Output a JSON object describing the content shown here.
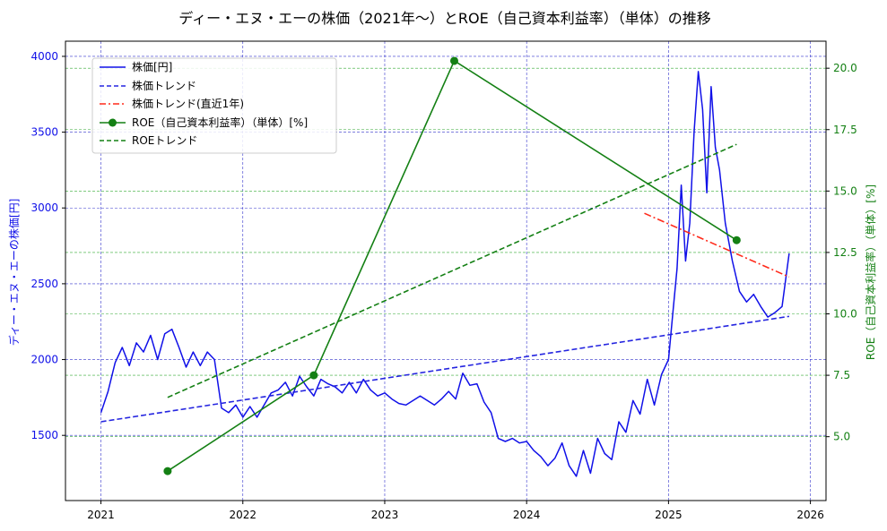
{
  "chart_data": {
    "type": "line",
    "title": "ディー・エヌ・エーの株価（2021年〜）とROE（自己資本利益率）（単体）の推移",
    "xlabel": "",
    "ylabel_left": "ディー・エヌ・エーの株価[円]",
    "ylabel_right": "ROE（自己資本利益率）（単体）[%]",
    "xlim": [
      2020.75,
      2026.11
    ],
    "ylim_left": [
      1070,
      4100
    ],
    "ylim_right": [
      2.4,
      21.1
    ],
    "x_ticks": [
      2021,
      2022,
      2023,
      2024,
      2025,
      2026
    ],
    "x_tick_labels": [
      "2021",
      "2022",
      "2023",
      "2024",
      "2025",
      "2026"
    ],
    "y_left_ticks": [
      1500,
      2000,
      2500,
      3000,
      3500,
      4000
    ],
    "y_left_tick_labels": [
      "1500",
      "2000",
      "2500",
      "3000",
      "3500",
      "4000"
    ],
    "y_right_ticks": [
      5.0,
      7.5,
      10.0,
      12.5,
      15.0,
      17.5,
      20.0
    ],
    "y_right_tick_labels": [
      "5.0",
      "7.5",
      "10.0",
      "12.5",
      "15.0",
      "17.5",
      "20.0"
    ],
    "colors": {
      "price": "#1010e8",
      "trend": "#2525e0",
      "recent": "#ff2a1a",
      "roe": "#148014",
      "grid_blue": "#3333cc",
      "grid_green": "#33aa33"
    },
    "series": [
      {
        "name": "株価[円]",
        "axis": "left",
        "style": "solid",
        "x": [
          2021.0,
          2021.05,
          2021.1,
          2021.15,
          2021.2,
          2021.25,
          2021.3,
          2021.35,
          2021.4,
          2021.45,
          2021.5,
          2021.55,
          2021.6,
          2021.65,
          2021.7,
          2021.75,
          2021.8,
          2021.85,
          2021.9,
          2021.95,
          2022.0,
          2022.05,
          2022.1,
          2022.15,
          2022.2,
          2022.25,
          2022.3,
          2022.35,
          2022.4,
          2022.45,
          2022.5,
          2022.55,
          2022.6,
          2022.65,
          2022.7,
          2022.75,
          2022.8,
          2022.85,
          2022.9,
          2022.95,
          2023.0,
          2023.05,
          2023.1,
          2023.15,
          2023.2,
          2023.25,
          2023.3,
          2023.35,
          2023.4,
          2023.45,
          2023.5,
          2023.55,
          2023.6,
          2023.65,
          2023.7,
          2023.75,
          2023.8,
          2023.85,
          2023.9,
          2023.95,
          2024.0,
          2024.05,
          2024.1,
          2024.15,
          2024.2,
          2024.25,
          2024.3,
          2024.35,
          2024.4,
          2024.45,
          2024.5,
          2024.55,
          2024.6,
          2024.65,
          2024.7,
          2024.75,
          2024.8,
          2024.85,
          2024.9,
          2024.95,
          2025.0,
          2025.03,
          2025.06,
          2025.09,
          2025.12,
          2025.15,
          2025.18,
          2025.21,
          2025.24,
          2025.27,
          2025.3,
          2025.33,
          2025.36,
          2025.4,
          2025.45,
          2025.5,
          2025.55,
          2025.6,
          2025.65,
          2025.7,
          2025.75,
          2025.8,
          2025.85
        ],
        "values": [
          1650,
          1790,
          1980,
          2080,
          1960,
          2110,
          2050,
          2160,
          2000,
          2170,
          2200,
          2080,
          1950,
          2050,
          1960,
          2050,
          2000,
          1680,
          1650,
          1700,
          1620,
          1690,
          1620,
          1700,
          1780,
          1800,
          1850,
          1760,
          1890,
          1820,
          1760,
          1870,
          1840,
          1820,
          1780,
          1850,
          1780,
          1870,
          1800,
          1760,
          1780,
          1740,
          1710,
          1700,
          1730,
          1760,
          1730,
          1700,
          1740,
          1790,
          1740,
          1910,
          1830,
          1840,
          1720,
          1650,
          1480,
          1460,
          1480,
          1450,
          1460,
          1400,
          1360,
          1300,
          1350,
          1450,
          1300,
          1230,
          1400,
          1250,
          1480,
          1380,
          1340,
          1590,
          1520,
          1730,
          1640,
          1870,
          1700,
          1900,
          2000,
          2300,
          2600,
          3150,
          2650,
          2900,
          3500,
          3900,
          3650,
          3100,
          3800,
          3400,
          3250,
          2900,
          2650,
          2450,
          2380,
          2430,
          2350,
          2280,
          2310,
          2350,
          2700
        ]
      },
      {
        "name": "株価トレンド",
        "axis": "left",
        "style": "dashed",
        "x": [
          2021.0,
          2025.85
        ],
        "values": [
          1590,
          2285
        ]
      },
      {
        "name": "株価トレンド(直近1年)",
        "axis": "left",
        "style": "dashdot",
        "x": [
          2024.83,
          2025.85
        ],
        "values": [
          2965,
          2545
        ]
      },
      {
        "name": "ROE（自己資本利益率）（単体）[%]",
        "axis": "right",
        "style": "solid-marker",
        "x": [
          2021.47,
          2022.5,
          2023.49,
          2025.48
        ],
        "values": [
          3.6,
          7.5,
          20.3,
          13.0
        ]
      },
      {
        "name": "ROEトレンド",
        "axis": "right",
        "style": "dashed",
        "x": [
          2021.47,
          2025.48
        ],
        "values": [
          6.6,
          16.9
        ]
      }
    ],
    "legend": [
      "株価[円]",
      "株価トレンド",
      "株価トレンド(直近1年)",
      "ROE（自己資本利益率）（単体）[%]",
      "ROEトレンド"
    ],
    "legend_position": "upper-left",
    "grid": true
  }
}
